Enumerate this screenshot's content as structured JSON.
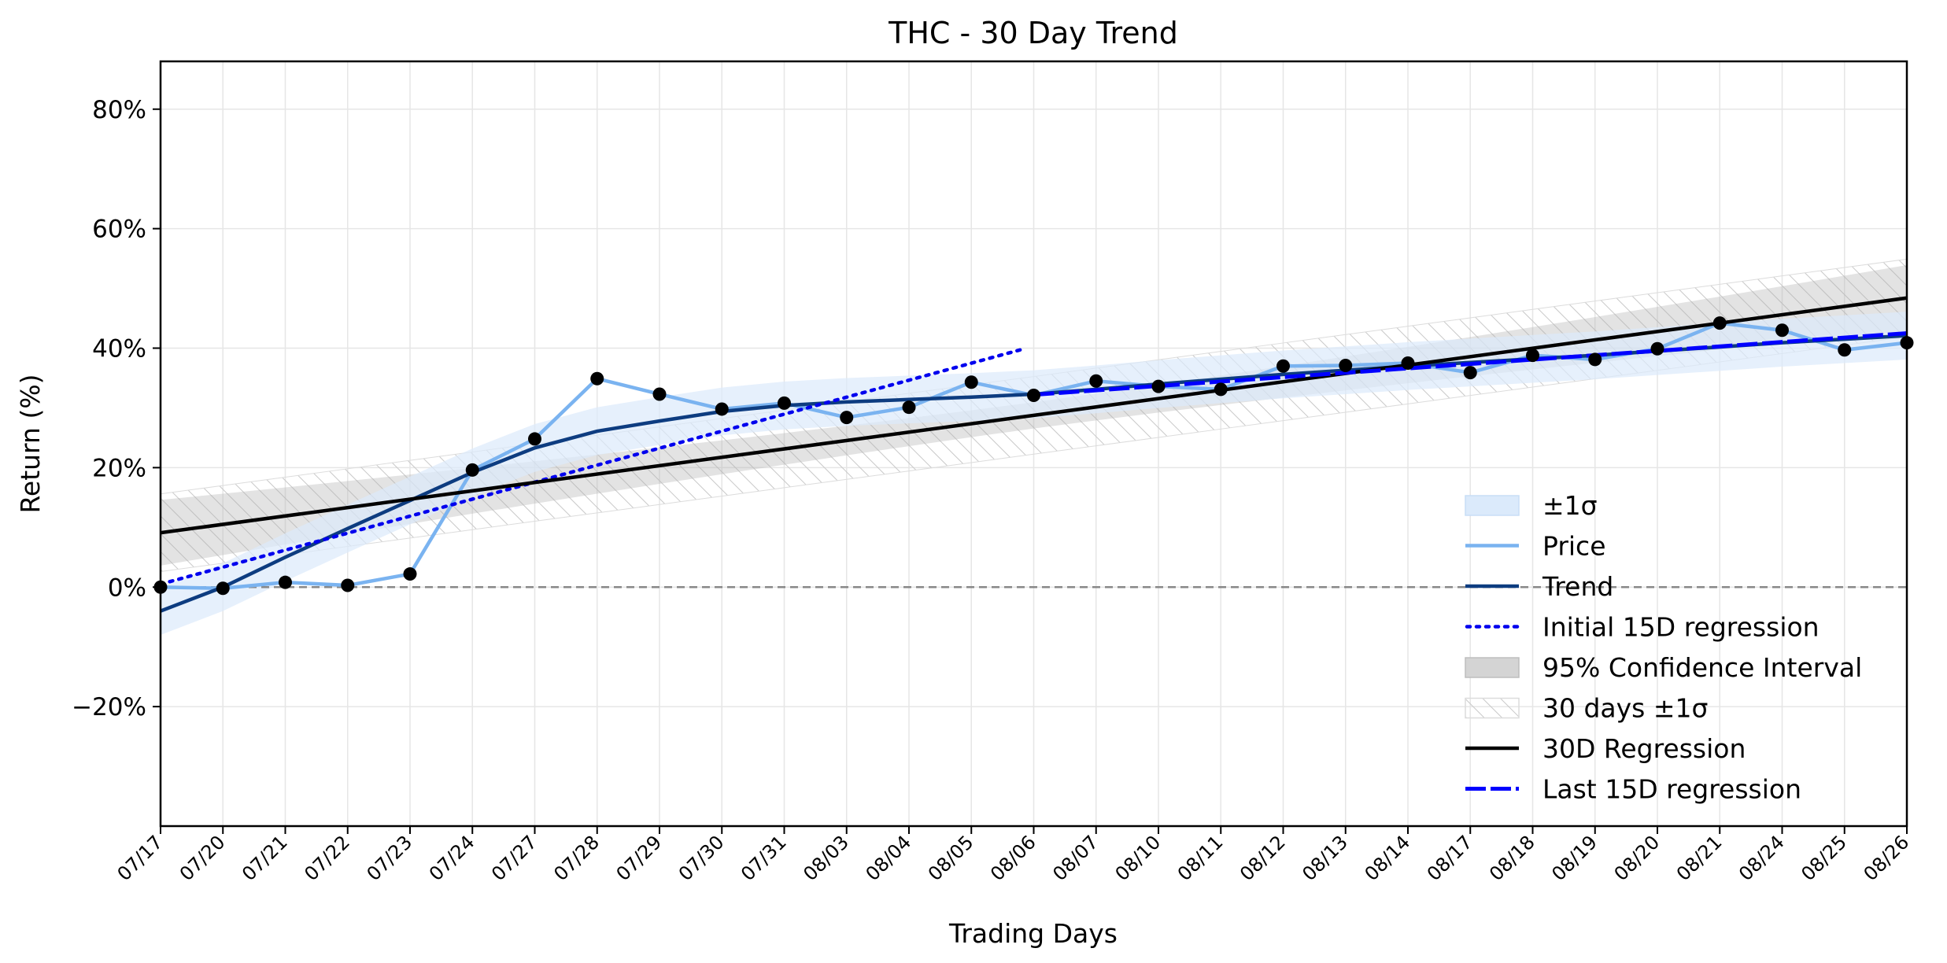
{
  "chart_data": {
    "type": "line",
    "title": "THC - 30 Day Trend",
    "xlabel": "Trading Days",
    "ylabel": "Return (%)",
    "categories": [
      "07/17",
      "07/20",
      "07/21",
      "07/22",
      "07/23",
      "07/24",
      "07/27",
      "07/28",
      "07/29",
      "07/30",
      "07/31",
      "08/03",
      "08/04",
      "08/05",
      "08/06",
      "08/07",
      "08/10",
      "08/11",
      "08/12",
      "08/13",
      "08/14",
      "08/17",
      "08/18",
      "08/19",
      "08/20",
      "08/21",
      "08/24",
      "08/25",
      "08/26"
    ],
    "ylim": [
      -40,
      88
    ],
    "yticks": [
      -20,
      0,
      20,
      40,
      60,
      80
    ],
    "ytick_labels": [
      "−20%",
      "0%",
      "20%",
      "40%",
      "60%",
      "80%"
    ],
    "grid": true,
    "legend_position": "lower-right",
    "zero_line": 0,
    "series": [
      {
        "name": "Price",
        "color": "#7ab3f0",
        "values": [
          0,
          -0.2,
          0.8,
          0.3,
          2.2,
          19.6,
          24.8,
          34.9,
          32.3,
          29.8,
          30.8,
          28.4,
          30.1,
          34.3,
          32.1,
          34.5,
          33.6,
          33.1,
          37.0,
          37.1,
          37.5,
          35.9,
          38.8,
          38.1,
          39.9,
          44.2,
          43.0,
          39.7,
          40.9
        ]
      },
      {
        "name": "Trend",
        "color": "#0d3c80",
        "values": [
          -4,
          0,
          5,
          9.8,
          14.5,
          19.2,
          23.3,
          26.1,
          27.8,
          29.4,
          30.4,
          31.0,
          31.4,
          31.8,
          32.3,
          33.1,
          34.0,
          34.8,
          35.6,
          36.3,
          37.0,
          37.6,
          38.2,
          38.8,
          39.5,
          40.2,
          40.9,
          41.5,
          42.1
        ]
      },
      {
        "name": "±1σ",
        "color": "#dbeafb",
        "sigma": 4
      },
      {
        "name": "Initial 15D regression",
        "color": "#0000ee",
        "x_range": [
          0,
          13.85
        ],
        "start": 0.5,
        "end": 39.9
      },
      {
        "name": "95% Confidence Interval",
        "color": "#b0b0b0"
      },
      {
        "name": "30 days ±1σ",
        "color": "#d8d8d8",
        "sigma": 6.5
      },
      {
        "name": "30D Regression",
        "color": "#000000",
        "start": 9.1,
        "end": 48.4
      },
      {
        "name": "Last 15D regression",
        "color": "#0000ff",
        "x_range": [
          14,
          28
        ],
        "start": 32.2,
        "end": 42.5
      }
    ]
  }
}
